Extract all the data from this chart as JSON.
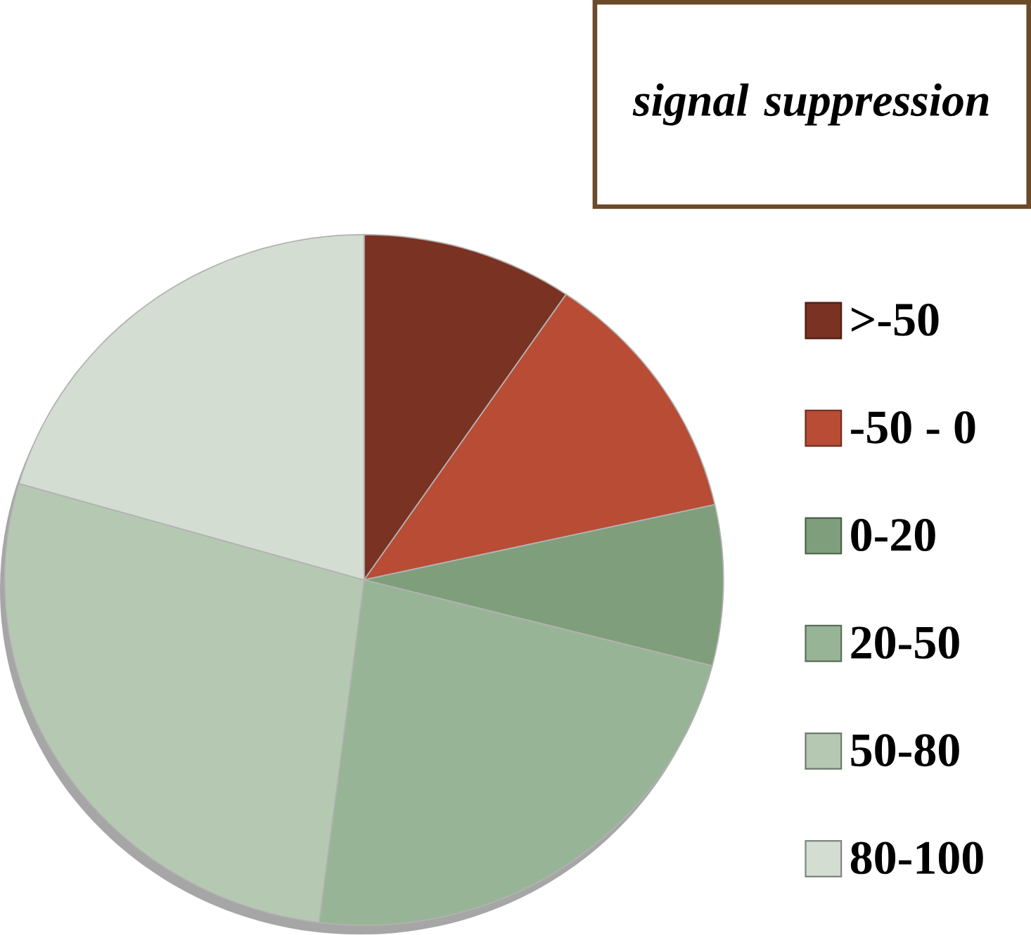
{
  "chart_data": {
    "type": "pie",
    "title": "signal suppression",
    "legend": "right",
    "categories": [
      ">-50",
      "-50 - 0",
      "0-20",
      "20-50",
      "50-80",
      "80-100"
    ],
    "values": [
      9.5,
      12,
      7.5,
      23,
      27.5,
      20.5
    ],
    "colors": [
      "#7a3222",
      "#b84c35",
      "#7f9e7c",
      "#98b496",
      "#b5c9b2",
      "#d3ddd2"
    ]
  }
}
